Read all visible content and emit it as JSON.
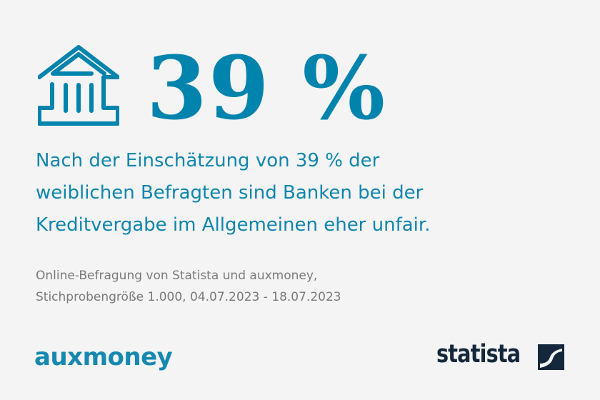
{
  "colors": {
    "accent": "#0083ad",
    "text_gray": "#7a7a7a",
    "statista_navy": "#14273b",
    "background": "#f4f4f4"
  },
  "icon": "bank-building-icon",
  "headline_figure": "39 %",
  "headline_lines": [
    "Nach der Einschätzung von 39 % der",
    "weiblichen Befragten sind Banken bei der",
    "Kreditvergabe im Allgemeinen eher unfair."
  ],
  "source_lines": [
    "Online-Befragung von Statista und auxmoney,",
    "Stichprobengröße 1.000, 04.07.2023 - 18.07.2023"
  ],
  "logos": {
    "left": "auxmoney",
    "right": "statista"
  }
}
